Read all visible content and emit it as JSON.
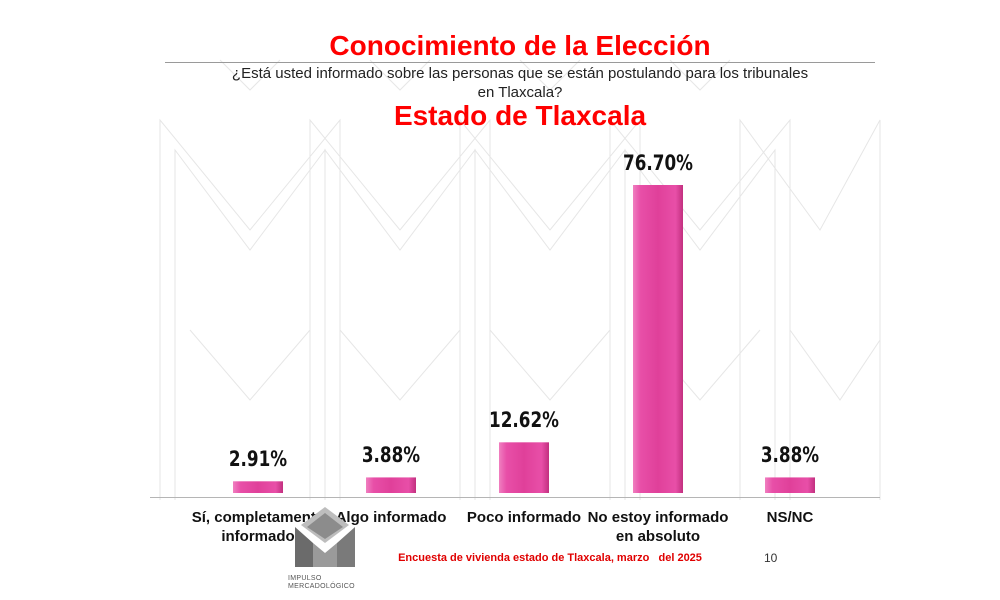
{
  "header": {
    "title": "Conocimiento de la Elección",
    "question_line1": "¿Está usted informado sobre las personas que se están postulando para los tribunales",
    "question_line2": "en Tlaxcala?",
    "subtitle": "Estado de Tlaxcala"
  },
  "chart_data": {
    "type": "bar",
    "title": "Estado de Tlaxcala",
    "categories": [
      [
        "Sí, completamente",
        "informado"
      ],
      [
        "Algo informado"
      ],
      [
        "Poco informado"
      ],
      [
        "No estoy informado",
        "en absoluto"
      ],
      [
        "NS/NC"
      ]
    ],
    "values": [
      2.91,
      3.88,
      12.62,
      76.7,
      3.88
    ],
    "value_labels": [
      "2.91%",
      "3.88%",
      "12.62%",
      "76.70%",
      "3.88%"
    ],
    "ylim": [
      0,
      80
    ],
    "xlabel": "",
    "ylabel": "",
    "grid": false,
    "legend": "none",
    "bar_color": "#e0409a"
  },
  "footer": {
    "source": "Encuesta de vivienda estado de Tlaxcala, marzo   del 2025",
    "page_number": "10",
    "logo_line1": "IMPULSO",
    "logo_line2": "MERCADOLÓGICO"
  }
}
